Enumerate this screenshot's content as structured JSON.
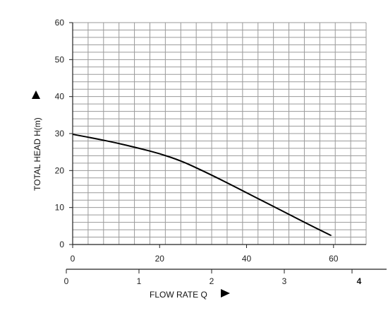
{
  "chart_data": {
    "type": "line",
    "title": "",
    "ylabel": "TOTAL HEAD H(m)",
    "xlabel": "FLOW RATE Q",
    "ylim": [
      0,
      60
    ],
    "y_ticks": [
      "0",
      "10",
      "20",
      "30",
      "40",
      "50",
      "60"
    ],
    "x_top_ticks": [
      "0",
      "20",
      "40",
      "60"
    ],
    "x_bottom_ticks": [
      "0",
      "1",
      "2",
      "3",
      "4"
    ],
    "grid": true,
    "series": [
      {
        "x": [
          0,
          5,
          10,
          15,
          20,
          25,
          30,
          35,
          40,
          45,
          50,
          55,
          59.5
        ],
        "y": [
          29.8,
          28.7,
          27.5,
          26.1,
          24.6,
          22.6,
          19.9,
          17.0,
          14.0,
          11.0,
          8.0,
          5.0,
          2.4
        ],
        "color": "#000000"
      }
    ]
  }
}
